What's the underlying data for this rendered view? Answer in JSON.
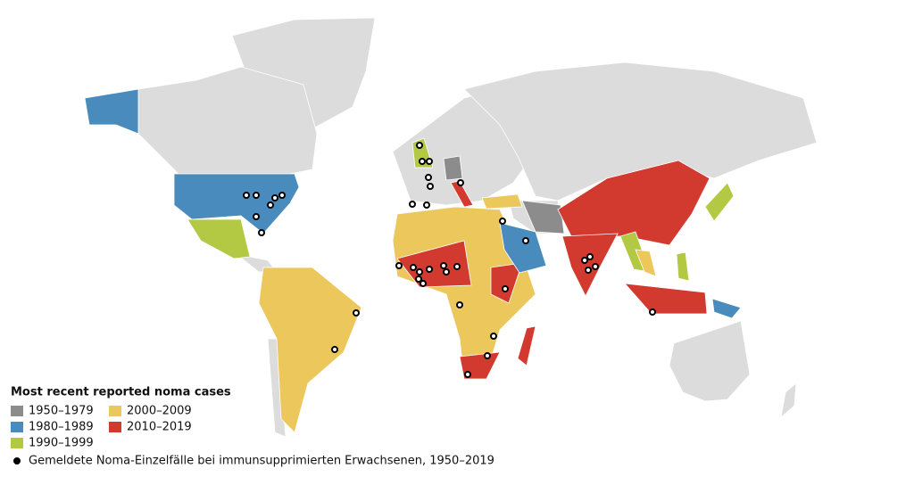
{
  "legend": {
    "title": "Most recent reported noma cases",
    "items": [
      {
        "label": "1950–1979",
        "color": "#8c8c8c"
      },
      {
        "label": "1980–1989",
        "color": "#4a8bbd"
      },
      {
        "label": "1990–1999",
        "color": "#b3c843"
      },
      {
        "label": "2000–2009",
        "color": "#ecc75b"
      },
      {
        "label": "2010–2019",
        "color": "#d23a2f"
      }
    ],
    "point_label": "Gemeldete Noma-Einzelfälle bei immunsupprimierten Erwachsenen, 1950–2019"
  }
}
